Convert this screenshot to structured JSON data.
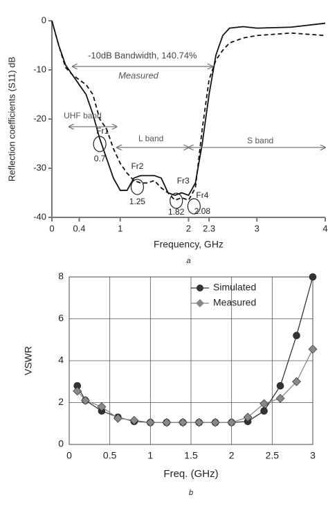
{
  "chart_data": [
    {
      "type": "line",
      "y_label": "Reflection coefficients (S11) dB",
      "x_label": "Frequency, GHz",
      "caption": "a",
      "x": [
        0,
        0.1,
        0.2,
        0.3,
        0.4,
        0.5,
        0.6,
        0.7,
        0.8,
        0.9,
        1.0,
        1.1,
        1.2,
        1.3,
        1.4,
        1.5,
        1.6,
        1.7,
        1.8,
        1.9,
        2.0,
        2.1,
        2.2,
        2.3,
        2.4,
        2.5,
        2.6,
        2.8,
        3.0,
        3.5,
        4.0
      ],
      "series": [
        {
          "color": "#111111",
          "dash": false,
          "values": [
            0,
            -5,
            -9,
            -11,
            -13,
            -15,
            -19,
            -24,
            -28,
            -32,
            -34.5,
            -34.5,
            -32,
            -31.5,
            -31.5,
            -31.5,
            -32,
            -35,
            -35.5,
            -35,
            -35.5,
            -33,
            -25,
            -15,
            -7,
            -3,
            -1.5,
            -1.2,
            -1.5,
            -1.3,
            -0.5
          ]
        },
        {
          "color": "#111111",
          "dash": true,
          "values": [
            0,
            -5,
            -9.5,
            -11,
            -12,
            -13,
            -15,
            -20,
            -22,
            -26,
            -29,
            -31,
            -32.5,
            -33,
            -33,
            -32.5,
            -34,
            -35,
            -36.5,
            -36,
            -36.5,
            -34,
            -22,
            -12,
            -8,
            -6,
            -4.5,
            -3.5,
            -3,
            -2.5,
            -3
          ]
        }
      ],
      "xlim": [
        0,
        4
      ],
      "xticks": [
        0,
        0.4,
        1,
        2,
        2.3,
        3,
        4
      ],
      "ylim": [
        -40,
        0
      ],
      "yticks": [
        0,
        -10,
        -20,
        -30,
        -40
      ],
      "grid": false,
      "bandwidth": {
        "label": "-10dB Bandwidth, 140.74%",
        "span": [
          0.3,
          2.35
        ]
      },
      "annotations": [
        "Measured"
      ],
      "bands": [
        {
          "name": "UHF band",
          "span": [
            0.25,
            0.95
          ]
        },
        {
          "name": "L band",
          "span": [
            0.95,
            2.0
          ]
        },
        {
          "name": "S band",
          "span": [
            2.0,
            4.0
          ]
        }
      ],
      "resonances": [
        {
          "name": "Fr1",
          "freq": 0.7
        },
        {
          "name": "Fr2",
          "freq": 1.25
        },
        {
          "name": "Fr3",
          "freq": 1.82
        },
        {
          "name": "Fr4",
          "freq": 2.08
        }
      ]
    },
    {
      "type": "line",
      "y_label": "VSWR",
      "x_label": "Freq. (GHz)",
      "caption": "b",
      "x": [
        0.1,
        0.2,
        0.4,
        0.6,
        0.8,
        1.0,
        1.2,
        1.4,
        1.6,
        1.8,
        2.0,
        2.2,
        2.4,
        2.6,
        2.8,
        3.0
      ],
      "series": [
        {
          "name": "Simulated",
          "color": "#333333",
          "marker": "circle",
          "values": [
            2.8,
            2.1,
            1.6,
            1.3,
            1.1,
            1.05,
            1.05,
            1.05,
            1.05,
            1.05,
            1.05,
            1.1,
            1.6,
            2.8,
            5.2,
            8.0
          ]
        },
        {
          "name": "Measured",
          "color": "#888888",
          "marker": "diamond",
          "values": [
            2.55,
            2.1,
            1.8,
            1.25,
            1.15,
            1.05,
            1.05,
            1.05,
            1.05,
            1.05,
            1.05,
            1.3,
            1.95,
            2.2,
            3.0,
            4.55
          ]
        }
      ],
      "xlim": [
        0,
        3
      ],
      "xticks": [
        0,
        0.5,
        1,
        1.5,
        2,
        2.5,
        3
      ],
      "ylim": [
        0,
        8
      ],
      "yticks": [
        0,
        2,
        4,
        6,
        8
      ],
      "grid": true,
      "legend": "upper right"
    }
  ]
}
